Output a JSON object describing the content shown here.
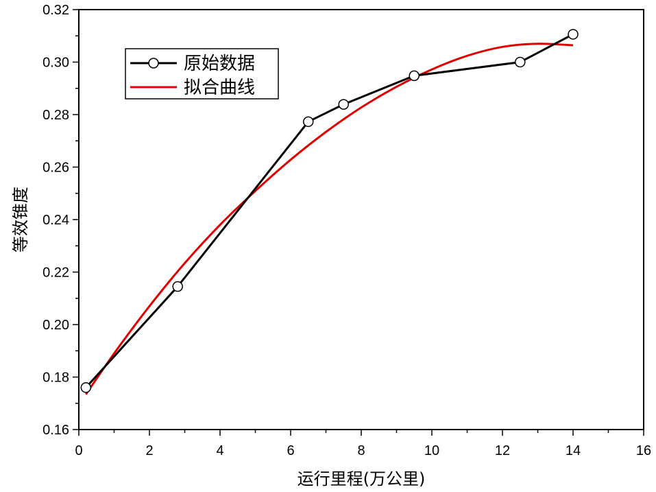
{
  "chart_data": {
    "type": "line",
    "xlabel": "运行里程(万公里)",
    "ylabel": "等效锥度",
    "xlim": [
      0,
      16
    ],
    "ylim": [
      0.16,
      0.32
    ],
    "x_ticks": [
      "0",
      "2",
      "4",
      "6",
      "8",
      "10",
      "12",
      "14",
      "16"
    ],
    "y_ticks": [
      "0.16",
      "0.18",
      "0.20",
      "0.22",
      "0.24",
      "0.26",
      "0.28",
      "0.30",
      "0.32"
    ],
    "legend_position": "top-left",
    "series": [
      {
        "name": "原始数据",
        "color": "#000000",
        "marker": "open-circle",
        "x": [
          0.2,
          2.8,
          6.5,
          7.5,
          9.5,
          12.5,
          14.0
        ],
        "y": [
          0.176,
          0.2145,
          0.2773,
          0.2839,
          0.2948,
          0.3,
          0.3106
        ]
      },
      {
        "name": "拟合曲线",
        "color": "#e00000",
        "marker": "none",
        "x": [
          0.2,
          1.0,
          2.0,
          3.0,
          4.0,
          5.0,
          6.0,
          7.0,
          8.0,
          9.0,
          10.0,
          11.0,
          12.0,
          13.0,
          14.0
        ],
        "y": [
          0.1734,
          0.189,
          0.207,
          0.2234,
          0.238,
          0.2509,
          0.2628,
          0.2734,
          0.2827,
          0.2906,
          0.2972,
          0.3024,
          0.3058,
          0.307,
          0.3064
        ]
      }
    ]
  }
}
